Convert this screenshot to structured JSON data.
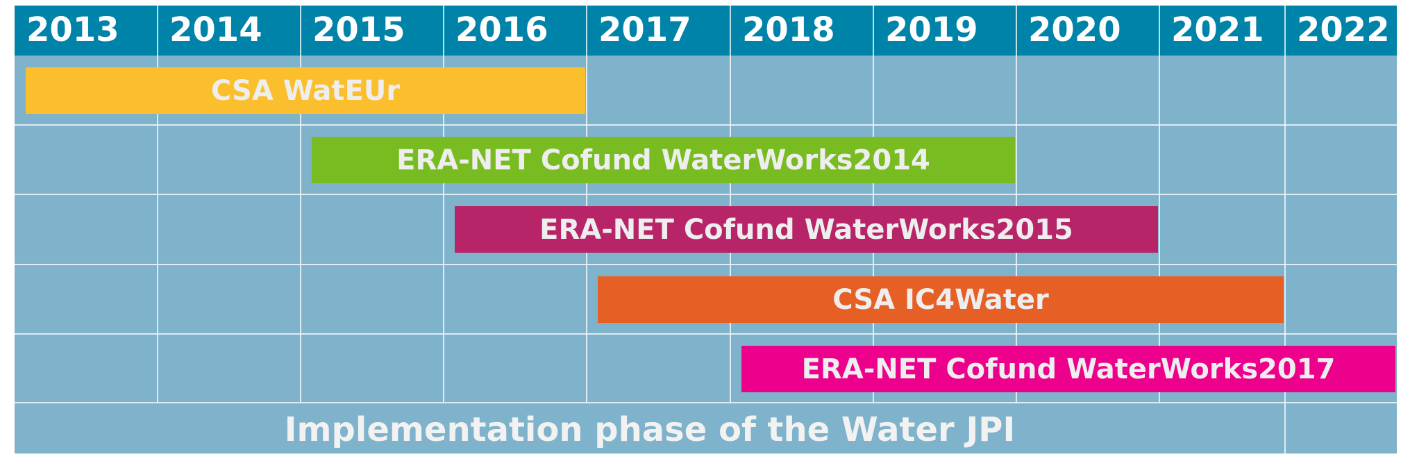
{
  "years": [
    "2013",
    "2014",
    "2015",
    "2016",
    "2017",
    "2018",
    "2019",
    "2020",
    "2021",
    "2022"
  ],
  "bars": [
    {
      "label": "CSA WatEUr",
      "start": 2013,
      "end": 2017,
      "color": "#fbbf2d"
    },
    {
      "label": "ERA-NET Cofund WaterWorks2014",
      "start": 2015,
      "end": 2020,
      "color": "#79bc21"
    },
    {
      "label": "ERA-NET Cofund WaterWorks2015",
      "start": 2016,
      "end": 2021,
      "color": "#b72467"
    },
    {
      "label": "CSA IC4Water",
      "start": 2017,
      "end": 2022,
      "color": "#e65f25"
    },
    {
      "label": "ERA-NET Cofund  WaterWorks2017",
      "start": 2018,
      "end": 2023,
      "color": "#ec008c"
    }
  ],
  "footer": "Implementation phase of the Water JPI"
}
